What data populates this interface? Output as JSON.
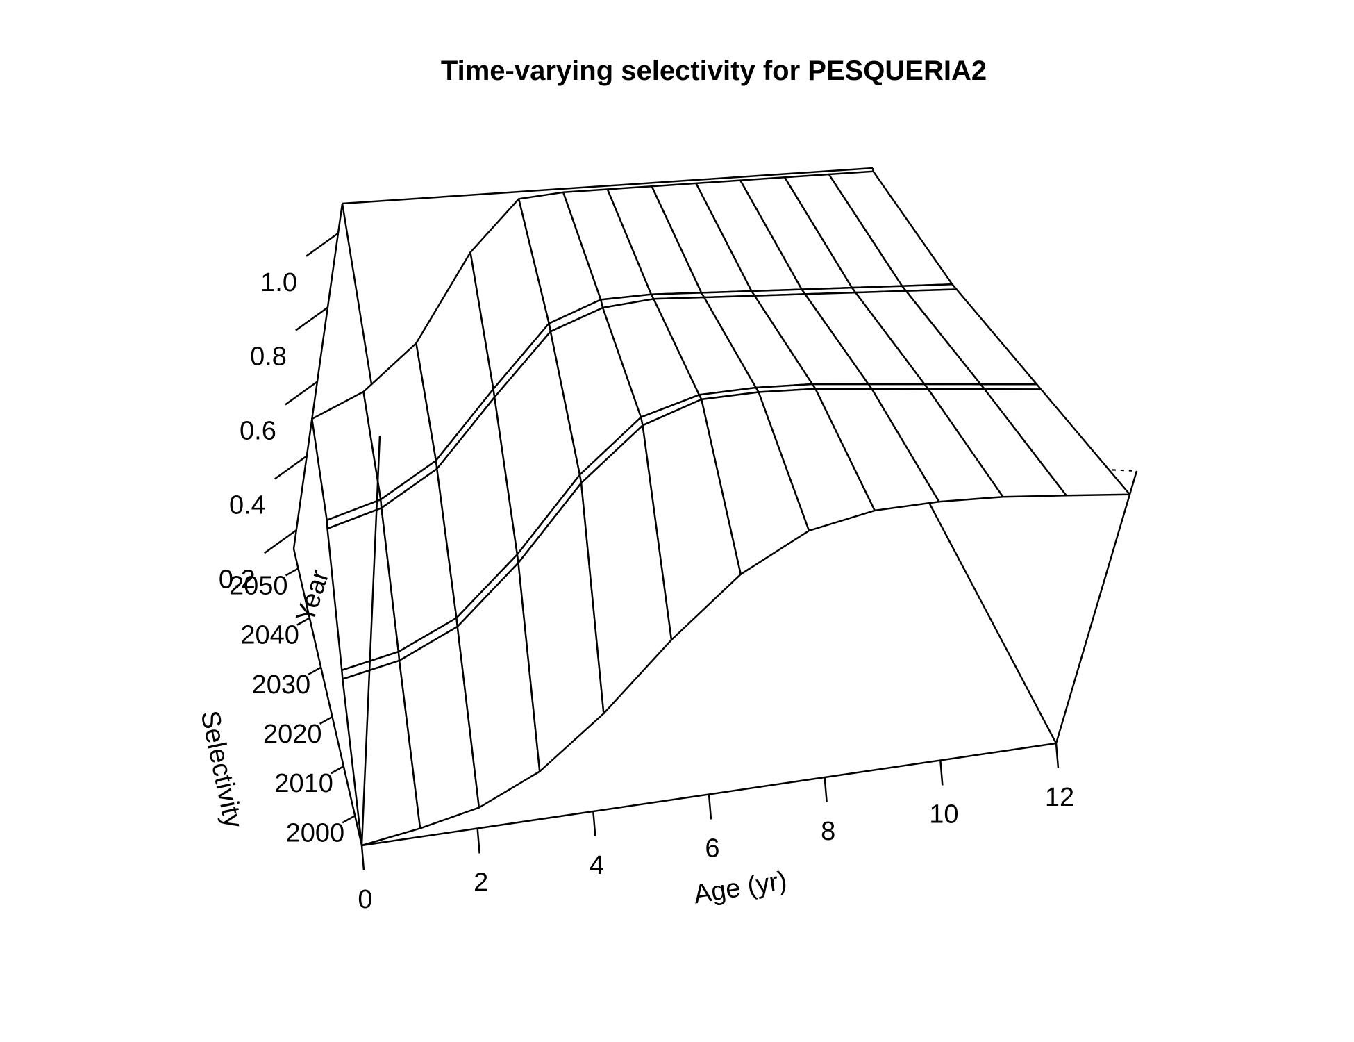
{
  "chart_data": {
    "type": "surface",
    "title": "Time-varying selectivity for PESQUERIA2",
    "xlabel": "Age (yr)",
    "ylabel": "Year",
    "zlabel": "Selectivity",
    "x_ticks": [
      "0",
      "2",
      "4",
      "6",
      "8",
      "10",
      "12"
    ],
    "y_ticks": [
      "2000",
      "2010",
      "2020",
      "2030",
      "2040",
      "2050"
    ],
    "z_ticks": [
      "0.2",
      "0.4",
      "0.6",
      "0.8",
      "1.0"
    ],
    "xlim": [
      0,
      12
    ],
    "ylim": [
      1994,
      2054
    ],
    "zlim": [
      0.15,
      1.08
    ],
    "ages": [
      0,
      1,
      2,
      3,
      4,
      5,
      6,
      7,
      8,
      9,
      10,
      11,
      12
    ],
    "years": [
      1994,
      2015,
      2016,
      2035,
      2036,
      2054
    ],
    "z": [
      [
        0.15,
        0.17,
        0.2,
        0.27,
        0.4,
        0.58,
        0.75,
        0.87,
        0.93,
        0.96,
        0.98,
        0.99,
        1.0
      ],
      [
        0.3,
        0.33,
        0.4,
        0.55,
        0.75,
        0.9,
        0.97,
        0.99,
        1.0,
        1.0,
        1.0,
        1.0,
        1.0
      ],
      [
        0.31,
        0.34,
        0.41,
        0.56,
        0.76,
        0.91,
        0.97,
        0.99,
        1.0,
        1.0,
        1.0,
        1.0,
        1.0
      ],
      [
        0.44,
        0.48,
        0.57,
        0.75,
        0.92,
        0.98,
        1.0,
        1.0,
        1.0,
        1.0,
        1.0,
        1.0,
        1.0
      ],
      [
        0.45,
        0.49,
        0.58,
        0.76,
        0.93,
        0.99,
        1.0,
        1.0,
        1.0,
        1.0,
        1.0,
        1.0,
        1.0
      ],
      [
        0.5,
        0.56,
        0.68,
        0.92,
        1.06,
        1.07,
        1.07,
        1.07,
        1.07,
        1.07,
        1.07,
        1.07,
        1.07
      ]
    ]
  }
}
